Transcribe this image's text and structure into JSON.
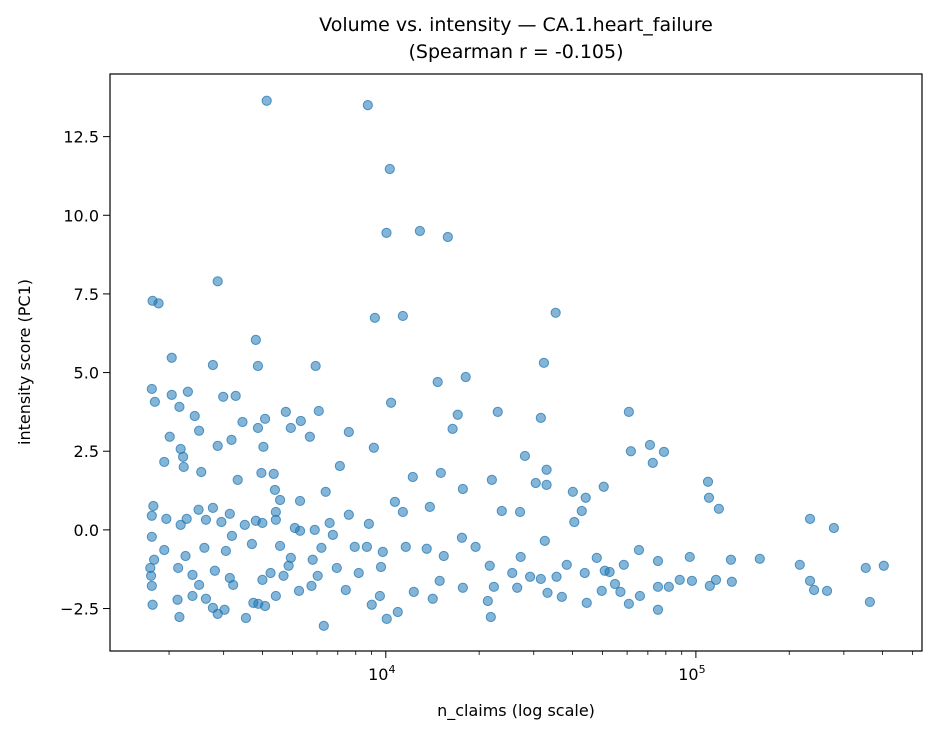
{
  "chart_data": {
    "type": "scatter",
    "title": "Volume vs. intensity — CA.1.heart_failure",
    "subtitle": "(Spearman r = -0.105)",
    "xlabel": "n_claims (log scale)",
    "ylabel": "intensity score (PC1)",
    "xscale": "log",
    "xlim": [
      1290,
      536000
    ],
    "ylim": [
      -3.85,
      14.49
    ],
    "xticks": [
      {
        "value": 10000,
        "base": "10",
        "exp": "4"
      },
      {
        "value": 100000,
        "base": "10",
        "exp": "5"
      }
    ],
    "yticks": [
      {
        "value": -2.5,
        "label": "−2.5"
      },
      {
        "value": 0,
        "label": "0.0"
      },
      {
        "value": 2.5,
        "label": "2.5"
      },
      {
        "value": 5,
        "label": "5.0"
      },
      {
        "value": 7.5,
        "label": "7.5"
      },
      {
        "value": 10,
        "label": "10.0"
      },
      {
        "value": 12.5,
        "label": "12.5"
      }
    ],
    "grid": false,
    "marker_color": "#1f77b4",
    "marker_alpha": 0.55,
    "points": [
      [
        4130,
        13.64
      ],
      [
        8750,
        13.5
      ],
      [
        10300,
        11.47
      ],
      [
        10050,
        9.44
      ],
      [
        12880,
        9.5
      ],
      [
        15850,
        9.31
      ],
      [
        2870,
        7.9
      ],
      [
        1770,
        7.28
      ],
      [
        1850,
        7.2
      ],
      [
        9220,
        6.74
      ],
      [
        11350,
        6.8
      ],
      [
        35300,
        6.9
      ],
      [
        3810,
        6.04
      ],
      [
        2040,
        5.47
      ],
      [
        2770,
        5.24
      ],
      [
        3870,
        5.21
      ],
      [
        5940,
        5.21
      ],
      [
        32350,
        5.31
      ],
      [
        18100,
        4.86
      ],
      [
        14700,
        4.7
      ],
      [
        1760,
        4.48
      ],
      [
        2040,
        4.29
      ],
      [
        2300,
        4.39
      ],
      [
        1800,
        4.07
      ],
      [
        2990,
        4.23
      ],
      [
        3280,
        4.26
      ],
      [
        10400,
        4.04
      ],
      [
        2160,
        3.91
      ],
      [
        2420,
        3.62
      ],
      [
        3450,
        3.43
      ],
      [
        4080,
        3.53
      ],
      [
        5320,
        3.46
      ],
      [
        6080,
        3.78
      ],
      [
        4760,
        3.75
      ],
      [
        3870,
        3.24
      ],
      [
        17060,
        3.66
      ],
      [
        22960,
        3.75
      ],
      [
        31620,
        3.56
      ],
      [
        60800,
        3.75
      ],
      [
        16420,
        3.21
      ],
      [
        7600,
        3.11
      ],
      [
        5690,
        2.96
      ],
      [
        4940,
        3.24
      ],
      [
        2500,
        3.15
      ],
      [
        2010,
        2.96
      ],
      [
        3180,
        2.86
      ],
      [
        2870,
        2.67
      ],
      [
        4030,
        2.64
      ],
      [
        9150,
        2.61
      ],
      [
        71100,
        2.7
      ],
      [
        78900,
        2.48
      ],
      [
        61700,
        2.5
      ],
      [
        72600,
        2.13
      ],
      [
        28100,
        2.35
      ],
      [
        2180,
        2.57
      ],
      [
        2220,
        2.32
      ],
      [
        1930,
        2.16
      ],
      [
        2230,
        2.0
      ],
      [
        2540,
        1.84
      ],
      [
        3330,
        1.59
      ],
      [
        3970,
        1.81
      ],
      [
        4350,
        1.78
      ],
      [
        7110,
        2.03
      ],
      [
        12220,
        1.68
      ],
      [
        15050,
        1.81
      ],
      [
        33000,
        1.91
      ],
      [
        109400,
        1.53
      ],
      [
        17720,
        1.3
      ],
      [
        21980,
        1.59
      ],
      [
        30450,
        1.49
      ],
      [
        33000,
        1.43
      ],
      [
        40100,
        1.21
      ],
      [
        44130,
        1.02
      ],
      [
        50440,
        1.37
      ],
      [
        110200,
        1.02
      ],
      [
        118600,
        0.67
      ],
      [
        233400,
        0.35
      ],
      [
        278600,
        0.06
      ],
      [
        42850,
        0.6
      ],
      [
        40540,
        0.25
      ],
      [
        32570,
        -0.35
      ],
      [
        23660,
        0.6
      ],
      [
        27100,
        0.57
      ],
      [
        13870,
        0.73
      ],
      [
        10700,
        0.89
      ],
      [
        11350,
        0.57
      ],
      [
        7600,
        0.48
      ],
      [
        6400,
        1.21
      ],
      [
        5290,
        0.92
      ],
      [
        4390,
        1.27
      ],
      [
        4560,
        0.95
      ],
      [
        4420,
        0.57
      ],
      [
        4420,
        0.32
      ],
      [
        3810,
        0.29
      ],
      [
        3140,
        0.51
      ],
      [
        2770,
        0.7
      ],
      [
        2490,
        0.64
      ],
      [
        2280,
        0.35
      ],
      [
        1960,
        0.35
      ],
      [
        1780,
        0.76
      ],
      [
        1760,
        0.45
      ],
      [
        2180,
        0.16
      ],
      [
        2630,
        0.32
      ],
      [
        2950,
        0.25
      ],
      [
        3510,
        0.16
      ],
      [
        4000,
        0.22
      ],
      [
        5090,
        0.06
      ],
      [
        6590,
        0.22
      ],
      [
        8820,
        0.19
      ],
      [
        5290,
        -0.03
      ],
      [
        5900,
        0.0
      ],
      [
        1760,
        -0.22
      ],
      [
        1930,
        -0.64
      ],
      [
        2260,
        -0.83
      ],
      [
        2600,
        -0.57
      ],
      [
        3050,
        -0.67
      ],
      [
        3700,
        -0.45
      ],
      [
        3190,
        -0.19
      ],
      [
        4560,
        -0.51
      ],
      [
        4940,
        -0.89
      ],
      [
        5810,
        -0.95
      ],
      [
        6750,
        -0.16
      ],
      [
        7940,
        -0.54
      ],
      [
        6200,
        -0.57
      ],
      [
        8690,
        -0.54
      ],
      [
        9780,
        -0.7
      ],
      [
        11600,
        -0.54
      ],
      [
        13550,
        -0.6
      ],
      [
        15380,
        -0.83
      ],
      [
        17600,
        -0.25
      ],
      [
        19480,
        -0.54
      ],
      [
        21640,
        -1.14
      ],
      [
        27230,
        -0.86
      ],
      [
        38340,
        -1.11
      ],
      [
        47900,
        -0.89
      ],
      [
        58560,
        -1.11
      ],
      [
        65530,
        -0.64
      ],
      [
        75460,
        -0.99
      ],
      [
        95560,
        -0.86
      ],
      [
        129700,
        -0.95
      ],
      [
        160700,
        -0.92
      ],
      [
        216300,
        -1.11
      ],
      [
        353000,
        -1.21
      ],
      [
        403600,
        -1.14
      ],
      [
        233400,
        -1.62
      ],
      [
        240500,
        -1.91
      ],
      [
        264800,
        -1.94
      ],
      [
        364000,
        -2.29
      ],
      [
        116100,
        -1.59
      ],
      [
        110900,
        -1.78
      ],
      [
        130600,
        -1.65
      ],
      [
        88700,
        -1.59
      ],
      [
        97100,
        -1.62
      ],
      [
        81800,
        -1.81
      ],
      [
        75460,
        -1.81
      ],
      [
        75460,
        -2.54
      ],
      [
        60800,
        -2.35
      ],
      [
        66000,
        -2.1
      ],
      [
        54850,
        -1.72
      ],
      [
        57100,
        -1.97
      ],
      [
        50830,
        -1.3
      ],
      [
        52700,
        -1.34
      ],
      [
        43810,
        -1.37
      ],
      [
        44470,
        -2.32
      ],
      [
        49700,
        -1.94
      ],
      [
        36960,
        -2.13
      ],
      [
        33230,
        -2.0
      ],
      [
        35530,
        -1.49
      ],
      [
        31620,
        -1.56
      ],
      [
        29190,
        -1.49
      ],
      [
        26530,
        -1.84
      ],
      [
        25570,
        -1.37
      ],
      [
        22310,
        -1.81
      ],
      [
        21330,
        -2.26
      ],
      [
        21810,
        -2.77
      ],
      [
        17720,
        -1.84
      ],
      [
        14170,
        -2.19
      ],
      [
        14920,
        -1.62
      ],
      [
        12310,
        -1.97
      ],
      [
        10930,
        -2.61
      ],
      [
        10070,
        -2.83
      ],
      [
        9570,
        -2.1
      ],
      [
        9010,
        -2.38
      ],
      [
        9650,
        -1.18
      ],
      [
        8180,
        -1.37
      ],
      [
        7430,
        -1.91
      ],
      [
        6310,
        -3.05
      ],
      [
        6950,
        -1.21
      ],
      [
        5760,
        -1.78
      ],
      [
        5250,
        -1.94
      ],
      [
        4420,
        -2.1
      ],
      [
        3740,
        -2.32
      ],
      [
        3880,
        -2.35
      ],
      [
        3540,
        -2.8
      ],
      [
        3020,
        -2.54
      ],
      [
        2770,
        -2.48
      ],
      [
        2630,
        -2.19
      ],
      [
        2870,
        -2.67
      ],
      [
        2160,
        -2.77
      ],
      [
        1770,
        -2.38
      ],
      [
        1760,
        -1.78
      ],
      [
        1750,
        -1.46
      ],
      [
        1740,
        -1.21
      ],
      [
        1790,
        -0.95
      ],
      [
        2140,
        -1.21
      ],
      [
        2380,
        -1.43
      ],
      [
        2810,
        -1.3
      ],
      [
        3220,
        -1.75
      ],
      [
        4000,
        -1.59
      ],
      [
        4250,
        -1.37
      ],
      [
        4860,
        -1.14
      ],
      [
        6030,
        -1.46
      ],
      [
        2130,
        -2.22
      ],
      [
        2380,
        -2.1
      ],
      [
        2500,
        -1.75
      ],
      [
        3140,
        -1.53
      ],
      [
        4680,
        -1.46
      ],
      [
        4080,
        -2.42
      ]
    ]
  }
}
